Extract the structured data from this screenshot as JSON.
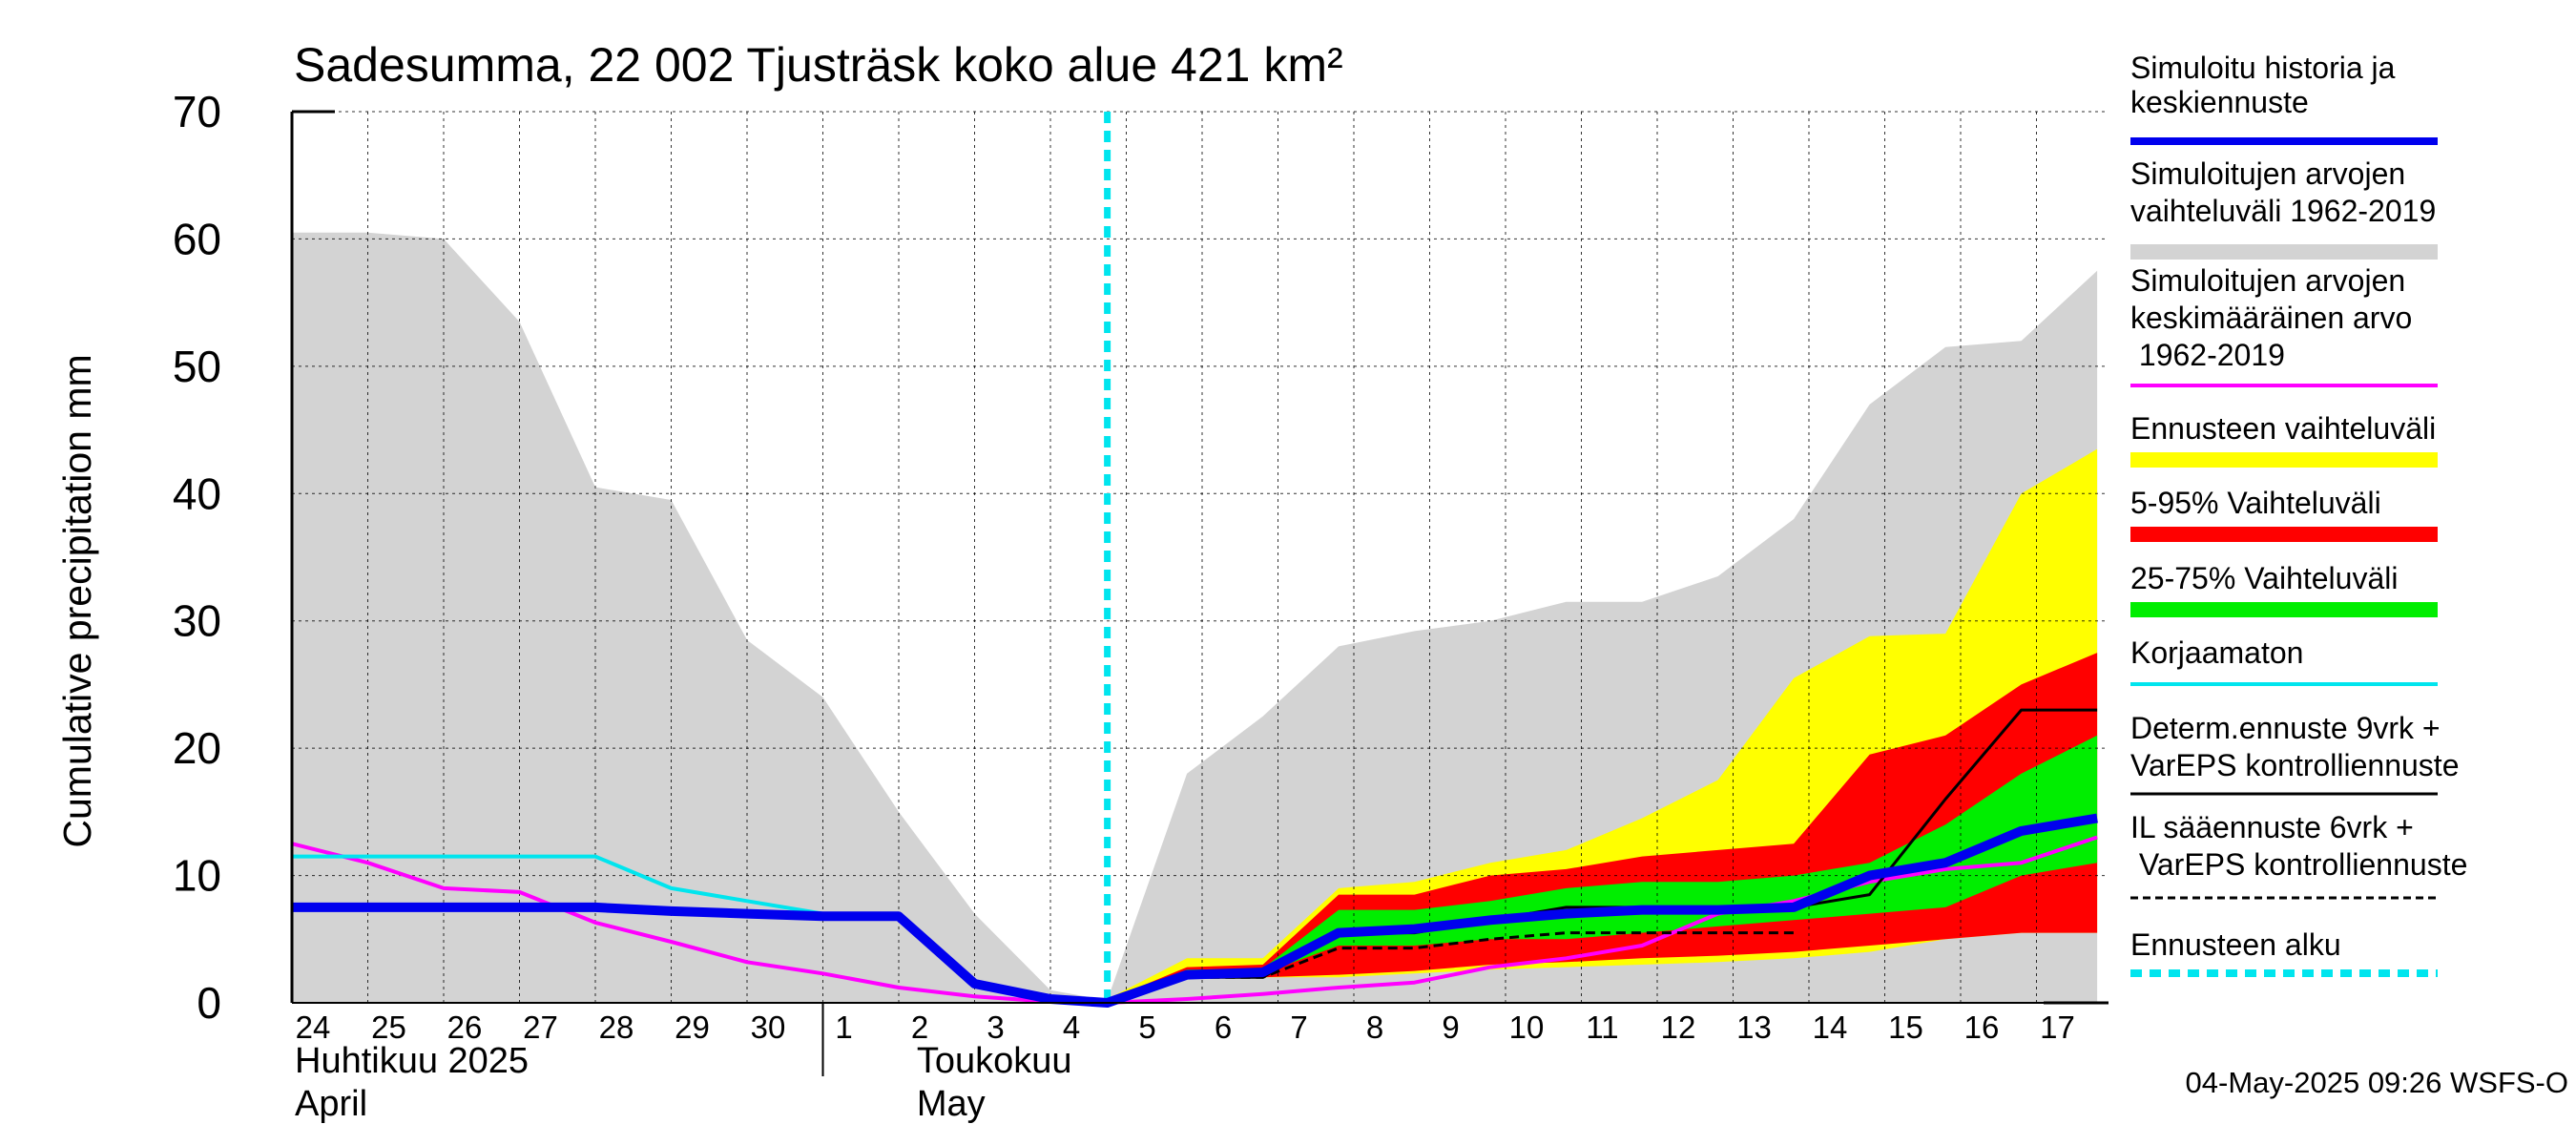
{
  "chart_data": {
    "type": "area",
    "title": "Sadesumma, 22 002 Tjusträsk koko alue 421 km²",
    "ylabel": "Cumulative precipitation   mm",
    "ylim": [
      0,
      70
    ],
    "yticks": [
      0,
      10,
      20,
      30,
      40,
      50,
      60,
      70
    ],
    "x_tick_labels": [
      "24",
      "25",
      "26",
      "27",
      "28",
      "29",
      "30",
      "1",
      "2",
      "3",
      "4",
      "5",
      "6",
      "7",
      "8",
      "9",
      "10",
      "11",
      "12",
      "13",
      "14",
      "15",
      "16",
      "17"
    ],
    "month_labels": [
      {
        "line1": "Huhtikuu  2025",
        "line2": "April",
        "day": 0
      },
      {
        "line1": "Toukokuu",
        "line2": "May",
        "day": 8.2
      }
    ],
    "grid": true,
    "x_axis_note": "day index 0 = 24 April 2025; forecast start at day 10.75",
    "forecast_start": 10.75,
    "history_band": {
      "x": [
        -0.6,
        1.0,
        2.0,
        3.0,
        4.0,
        5.0,
        6.0,
        7.0,
        8.0,
        9.0,
        10.0,
        10.75,
        11.8,
        12.8,
        13.8,
        14.8,
        15.8,
        16.8,
        17.8,
        18.8,
        19.8,
        20.8,
        21.8,
        22.8,
        23.8
      ],
      "upper": [
        60.5,
        60.5,
        60.0,
        53.5,
        40.5,
        39.5,
        28.5,
        24.0,
        15.0,
        7.0,
        1.0,
        0.2,
        18.0,
        22.5,
        28.0,
        29.2,
        30.0,
        31.5,
        31.5,
        33.5,
        38.0,
        47.0,
        51.5,
        52.0,
        57.5
      ],
      "lower": [
        0.0,
        0.0,
        0.0,
        0.0,
        0.0,
        0.0,
        0.0,
        0.0,
        0.0,
        0.0,
        0.0,
        0.0,
        0.0,
        0.0,
        0.0,
        0.0,
        0.0,
        0.0,
        0.0,
        0.0,
        0.0,
        0.0,
        0.0,
        0.0,
        0.0
      ]
    },
    "bands": [
      {
        "name": "Ennusteen vaihteluväli",
        "color": "#ffff00",
        "x": [
          10.75,
          11.8,
          12.8,
          13.8,
          14.8,
          15.8,
          16.8,
          17.8,
          18.8,
          19.8,
          20.8,
          21.8,
          22.8,
          23.8
        ],
        "upper": [
          0.3,
          3.5,
          3.5,
          9.0,
          9.5,
          11.0,
          12.0,
          14.5,
          17.5,
          25.5,
          28.8,
          29.0,
          40.0,
          43.5
        ],
        "lower": [
          0.0,
          2.0,
          2.0,
          2.0,
          2.3,
          2.6,
          2.8,
          3.0,
          3.2,
          3.5,
          4.0,
          5.0,
          5.5,
          5.5
        ]
      },
      {
        "name": "5-95% Vaihteluväli",
        "color": "#ff0000",
        "x": [
          10.75,
          11.8,
          12.8,
          13.8,
          14.8,
          15.8,
          16.8,
          17.8,
          18.8,
          19.8,
          20.8,
          21.8,
          22.8,
          23.8
        ],
        "upper": [
          0.2,
          2.8,
          3.0,
          8.5,
          8.5,
          10.0,
          10.5,
          11.5,
          12.0,
          12.5,
          19.5,
          21.0,
          25.0,
          27.5
        ],
        "lower": [
          0.0,
          2.0,
          2.0,
          2.2,
          2.5,
          3.0,
          3.2,
          3.5,
          3.7,
          4.0,
          4.5,
          5.0,
          5.5,
          5.5
        ]
      },
      {
        "name": "25-75% Vaihteluväli",
        "color": "#00ee00",
        "x": [
          10.75,
          11.8,
          12.8,
          13.8,
          14.8,
          15.8,
          16.8,
          17.8,
          18.8,
          19.8,
          20.8,
          21.8,
          22.8,
          23.8
        ],
        "upper": [
          0.1,
          2.6,
          2.7,
          7.3,
          7.3,
          8.0,
          9.0,
          9.5,
          9.5,
          10.0,
          11.0,
          14.0,
          18.0,
          21.0
        ],
        "lower": [
          0.0,
          2.2,
          2.3,
          4.5,
          4.5,
          5.0,
          5.0,
          5.5,
          6.0,
          6.5,
          7.0,
          7.5,
          10.0,
          11.0
        ]
      }
    ],
    "series": [
      {
        "name": "Simuloitujen arvojen keskimääräinen arvo 1962-2019",
        "color": "#ff00ff",
        "width": 4,
        "x": [
          -0.6,
          1.0,
          2.0,
          3.0,
          4.0,
          5.0,
          6.0,
          7.0,
          8.0,
          9.0,
          10.0,
          10.75,
          11.8,
          12.8,
          13.8,
          14.8,
          15.8,
          16.8,
          17.8,
          18.8,
          19.8,
          20.8,
          21.8,
          22.8,
          23.8
        ],
        "y": [
          12.5,
          11.0,
          9.0,
          8.7,
          6.3,
          4.8,
          3.2,
          2.3,
          1.2,
          0.5,
          0.1,
          0.0,
          0.3,
          0.7,
          1.2,
          1.6,
          2.8,
          3.5,
          4.5,
          7.0,
          8.0,
          9.5,
          10.5,
          11.0,
          13.0
        ]
      },
      {
        "name": "Korjaamaton",
        "color": "#00e5ee",
        "width": 4,
        "x": [
          -0.6,
          1.0,
          2.0,
          3.0,
          4.0,
          5.0,
          6.0,
          7.0,
          8.0,
          9.0,
          10.0,
          10.75
        ],
        "y": [
          11.5,
          11.5,
          11.5,
          11.5,
          11.5,
          9.0,
          8.0,
          7.0,
          7.0,
          1.5,
          0.5,
          0.0
        ]
      },
      {
        "name": "IL sääennuste 6vrk  + VarEPS kontrolliennuste",
        "color": "#000000",
        "width": 3,
        "dash": "10,6",
        "x": [
          10.75,
          11.8,
          12.8,
          13.8,
          14.8,
          15.8,
          16.8,
          17.8,
          18.8,
          19.8
        ],
        "y": [
          0.0,
          2.0,
          2.0,
          4.3,
          4.3,
          5.0,
          5.5,
          5.5,
          5.5,
          5.5
        ]
      },
      {
        "name": "Determ.ennuste 9vrk + VarEPS kontrolliennuste",
        "color": "#000000",
        "width": 3,
        "x": [
          10.75,
          11.8,
          12.8,
          13.8,
          14.8,
          15.8,
          16.8,
          17.8,
          18.8,
          19.8,
          20.8,
          21.8,
          22.8,
          23.8
        ],
        "y": [
          0.0,
          2.0,
          2.0,
          5.5,
          5.5,
          6.5,
          7.5,
          7.5,
          7.5,
          7.5,
          8.5,
          16.0,
          23.0,
          23.0
        ]
      },
      {
        "name": "Simuloitu historia ja keskiennuste",
        "color": "#0000ee",
        "width": 10,
        "x": [
          -0.6,
          1.0,
          2.0,
          3.0,
          4.0,
          5.0,
          6.0,
          7.0,
          8.0,
          9.0,
          10.0,
          10.75,
          11.8,
          12.8,
          13.8,
          14.8,
          15.8,
          16.8,
          17.8,
          18.8,
          19.8,
          20.8,
          21.8,
          22.8,
          23.8
        ],
        "y": [
          7.5,
          7.5,
          7.5,
          7.5,
          7.5,
          7.2,
          7.0,
          6.8,
          6.8,
          1.5,
          0.3,
          0.0,
          2.2,
          2.4,
          5.5,
          5.8,
          6.5,
          7.0,
          7.3,
          7.3,
          7.5,
          10.0,
          11.0,
          13.5,
          14.5
        ]
      }
    ],
    "legend_placement": "right",
    "legend": [
      {
        "label": "Simuloitu historia ja keskiennuste",
        "color": "#0000ee",
        "style": "thick"
      },
      {
        "label": "Simuloitujen arvojen vaihteluväli 1962-2019",
        "color": "#d3d3d3",
        "style": "band"
      },
      {
        "label": "Simuloitujen arvojen keskimääräinen arvo   1962-2019",
        "color": "#ff00ff",
        "style": "thin"
      },
      {
        "label": "Ennusteen vaihteluväli",
        "color": "#ffff00",
        "style": "band"
      },
      {
        "label": "5-95% Vaihteluväli",
        "color": "#ff0000",
        "style": "band"
      },
      {
        "label": "25-75% Vaihteluväli",
        "color": "#00ee00",
        "style": "band"
      },
      {
        "label": "Korjaamaton",
        "color": "#00e5ee",
        "style": "thin"
      },
      {
        "label": "Determ.ennuste 9vrk + VarEPS kontrolliennuste",
        "color": "#000000",
        "style": "thin"
      },
      {
        "label": "IL sääennuste 6vrk  + VarEPS kontrolliennuste",
        "color": "#000000",
        "style": "dashed"
      },
      {
        "label": "Ennusteen alku",
        "color": "#00e5ee",
        "style": "dotted"
      }
    ],
    "footer": "04-May-2025 09:26 WSFS-O"
  }
}
